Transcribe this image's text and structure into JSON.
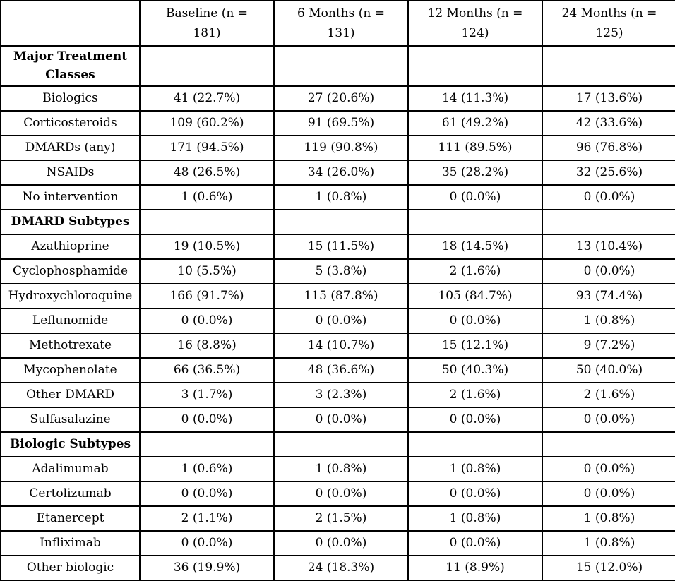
{
  "page": {
    "background": "#ffffff",
    "text_color": "#000000",
    "border_color": "#000000"
  },
  "table": {
    "header": {
      "cols": [
        "",
        "Baseline (n =\n181)",
        "6 Months (n =\n131)",
        "12 Months (n =\n124)",
        "24 Months (n =\n125)"
      ]
    },
    "sections": [
      {
        "title": "Major Treatment Classes",
        "rows": [
          {
            "label": "Biologics",
            "values": [
              "41 (22.7%)",
              "27 (20.6%)",
              "14 (11.3%)",
              "17 (13.6%)"
            ]
          },
          {
            "label": "Corticosteroids",
            "values": [
              "109 (60.2%)",
              "91 (69.5%)",
              "61 (49.2%)",
              "42 (33.6%)"
            ]
          },
          {
            "label": "DMARDs (any)",
            "values": [
              "171 (94.5%)",
              "119 (90.8%)",
              "111 (89.5%)",
              "96 (76.8%)"
            ]
          },
          {
            "label": "NSAIDs",
            "values": [
              "48 (26.5%)",
              "34 (26.0%)",
              "35 (28.2%)",
              "32 (25.6%)"
            ]
          },
          {
            "label": "No intervention",
            "values": [
              "1 (0.6%)",
              "1 (0.8%)",
              "0 (0.0%)",
              "0 (0.0%)"
            ]
          }
        ]
      },
      {
        "title": "DMARD Subtypes",
        "rows": [
          {
            "label": "Azathioprine",
            "values": [
              "19 (10.5%)",
              "15 (11.5%)",
              "18 (14.5%)",
              "13 (10.4%)"
            ]
          },
          {
            "label": "Cyclophosphamide",
            "values": [
              "10 (5.5%)",
              "5 (3.8%)",
              "2 (1.6%)",
              "0 (0.0%)"
            ]
          },
          {
            "label": "Hydroxychloroquine",
            "values": [
              "166 (91.7%)",
              "115 (87.8%)",
              "105 (84.7%)",
              "93 (74.4%)"
            ]
          },
          {
            "label": "Leflunomide",
            "values": [
              "0 (0.0%)",
              "0 (0.0%)",
              "0 (0.0%)",
              "1 (0.8%)"
            ]
          },
          {
            "label": "Methotrexate",
            "values": [
              "16 (8.8%)",
              "14 (10.7%)",
              "15 (12.1%)",
              "9 (7.2%)"
            ]
          },
          {
            "label": "Mycophenolate",
            "values": [
              "66 (36.5%)",
              "48 (36.6%)",
              "50 (40.3%)",
              "50 (40.0%)"
            ]
          },
          {
            "label": "Other DMARD",
            "values": [
              "3 (1.7%)",
              "3 (2.3%)",
              "2 (1.6%)",
              "2 (1.6%)"
            ]
          },
          {
            "label": "Sulfasalazine",
            "values": [
              "0 (0.0%)",
              "0 (0.0%)",
              "0 (0.0%)",
              "0 (0.0%)"
            ]
          }
        ]
      },
      {
        "title": "Biologic Subtypes",
        "rows": [
          {
            "label": "Adalimumab",
            "values": [
              "1 (0.6%)",
              "1 (0.8%)",
              "1 (0.8%)",
              "0 (0.0%)"
            ]
          },
          {
            "label": "Certolizumab",
            "values": [
              "0 (0.0%)",
              "0 (0.0%)",
              "0 (0.0%)",
              "0 (0.0%)"
            ]
          },
          {
            "label": "Etanercept",
            "values": [
              "2 (1.1%)",
              "2 (1.5%)",
              "1 (0.8%)",
              "1 (0.8%)"
            ]
          },
          {
            "label": "Infliximab",
            "values": [
              "0 (0.0%)",
              "0 (0.0%)",
              "0 (0.0%)",
              "1 (0.8%)"
            ]
          },
          {
            "label": "Other biologic",
            "values": [
              "36 (19.9%)",
              "24 (18.3%)",
              "11 (8.9%)",
              "15 (12.0%)"
            ]
          }
        ]
      }
    ]
  }
}
